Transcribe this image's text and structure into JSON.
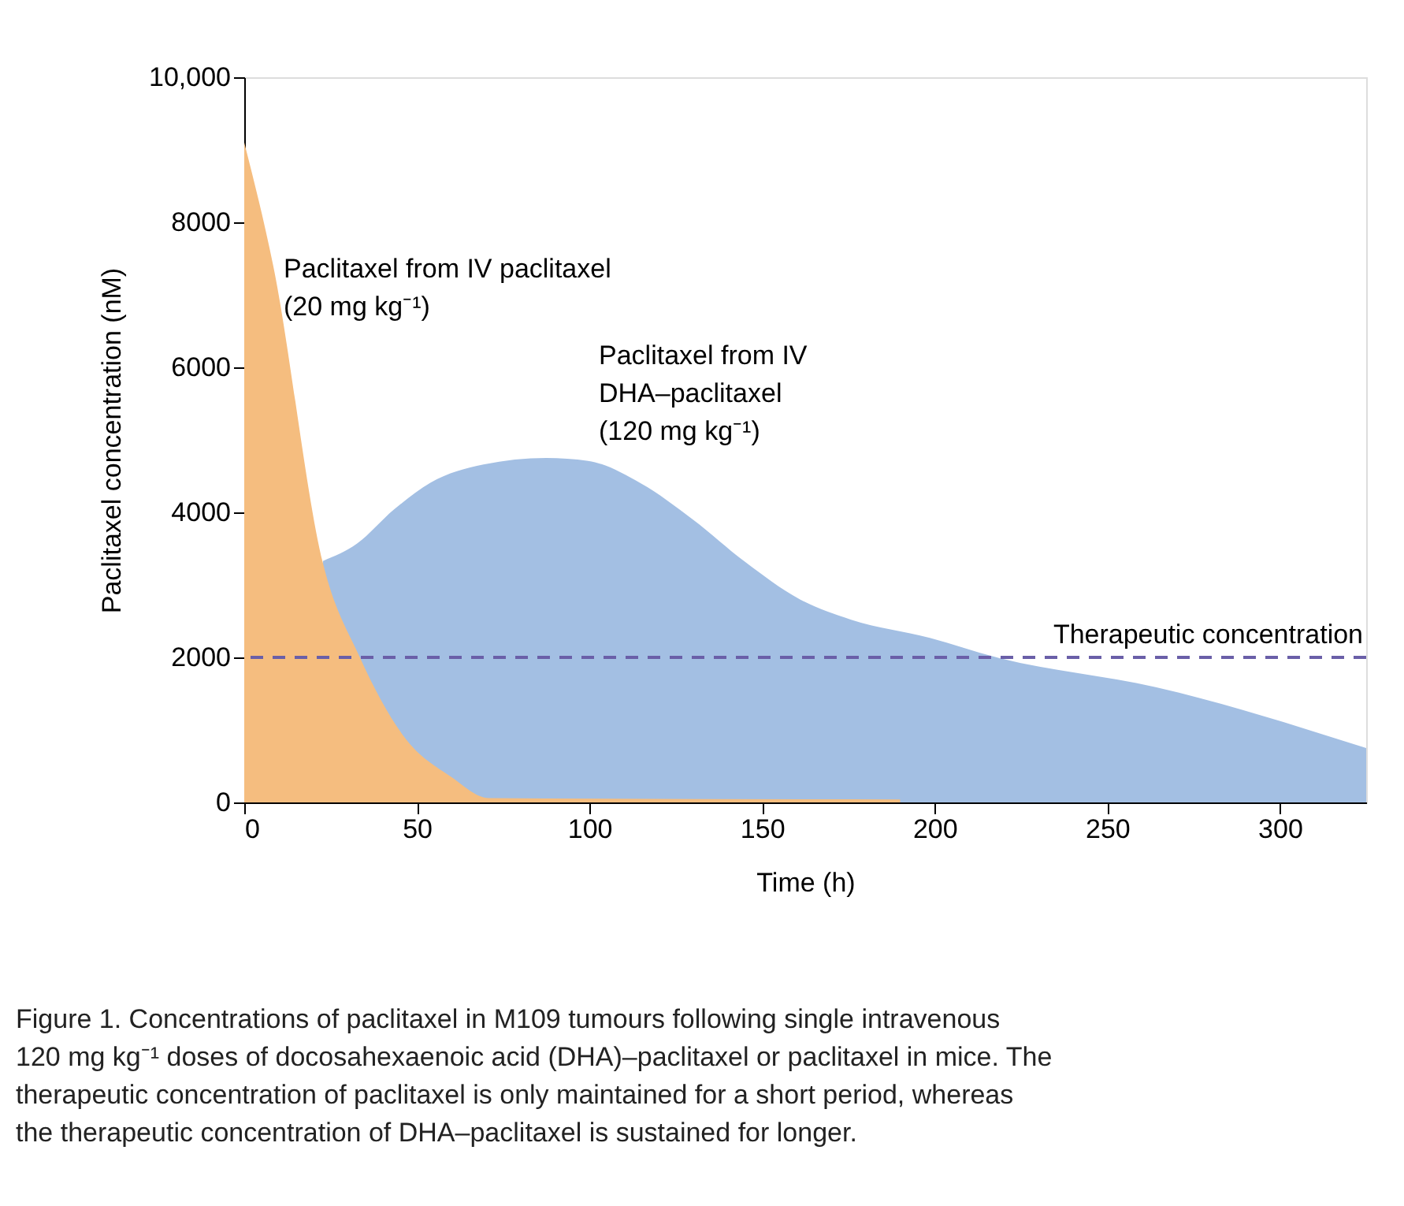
{
  "chart_data": {
    "type": "area",
    "xlabel": "Time (h)",
    "ylabel": "Paclitaxel concentration (nM)",
    "xlim": [
      0,
      325
    ],
    "xticks": [
      0,
      50,
      100,
      150,
      200,
      250,
      300
    ],
    "ylim": [
      0,
      10000
    ],
    "yticks": [
      0,
      2000,
      4000,
      6000,
      8000,
      {
        "value": 10000,
        "label": "10,000"
      }
    ],
    "grid": false,
    "series": [
      {
        "name": "Paclitaxel from IV\nDHA–paclitaxel\n(120 mg kg⁻¹)",
        "color": "#a3bfe3",
        "x": [
          22.8,
          32.7,
          43.4,
          54,
          69.3,
          87.5,
          99.6,
          114.9,
          130,
          145,
          160.6,
          175.8,
          198.6,
          218,
          264,
          325
        ],
        "values": [
          3330,
          3570,
          4040,
          4410,
          4660,
          4750,
          4710,
          4400,
          3900,
          3320,
          2810,
          2520,
          2270,
          2000,
          1590,
          750
        ]
      },
      {
        "name": "Paclitaxel from IV paclitaxel\n(20 mg kg⁻¹)",
        "color": "#f5bd7f",
        "x": [
          0,
          8.4,
          22.8,
          33.5,
          46.4,
          60,
          70.8,
          190
        ],
        "values": [
          9100,
          7400,
          3300,
          2000,
          900,
          350,
          60,
          40
        ]
      }
    ],
    "ref_lines": [
      {
        "axis": "y",
        "value": 2000,
        "label": "Therapeutic concentration",
        "color": "#6a5fa8",
        "line_style": "dashed"
      }
    ],
    "annotations": [
      "Figure 1. Concentrations of paclitaxel in M109 tumours following single intravenous 120 mg kg⁻¹ doses of docosahexaenoic acid (DHA)–paclitaxel or paclitaxel in mice. The therapeutic concentration of paclitaxel is only maintained for a short period, whereas the therapeutic concentration of DHA–paclitaxel is sustained for longer."
    ]
  }
}
